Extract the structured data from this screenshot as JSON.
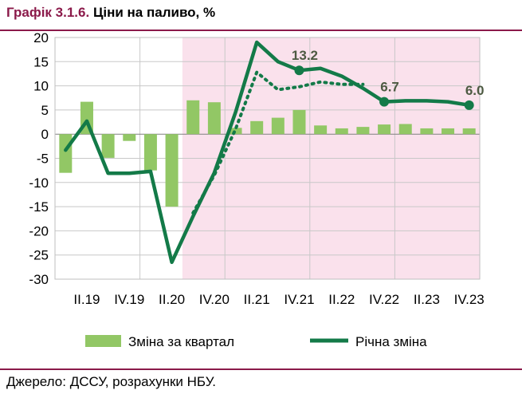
{
  "header": {
    "number": "Графік 3.1.6.",
    "title": "Ціни на паливо, %"
  },
  "footer": {
    "source": "Джерело: ДССУ, розрахунки НБУ."
  },
  "colors": {
    "accent": "#8b1a4a",
    "bar": "#92c765",
    "line": "#137a48",
    "shade": "#fae1ec",
    "annotation": "#4d5a42"
  },
  "chart_data": {
    "type": "bar",
    "quarters": [
      "I.19",
      "II.19",
      "III.19",
      "IV.19",
      "I.20",
      "II.20",
      "III.20",
      "IV.20",
      "I.21",
      "II.21",
      "III.21",
      "IV.21",
      "I.22",
      "II.22",
      "III.22",
      "IV.22",
      "I.23",
      "II.23",
      "III.23",
      "IV.23"
    ],
    "x_tick_labels": [
      "II.19",
      "IV.19",
      "II.20",
      "IV.20",
      "II.21",
      "IV.21",
      "II.22",
      "IV.22",
      "II.23",
      "IV.23"
    ],
    "ylim": [
      -30,
      20
    ],
    "y_ticks": [
      20,
      15,
      10,
      5,
      0,
      -5,
      -10,
      -15,
      -20,
      -25,
      -30
    ],
    "shaded_from": "II.20",
    "series": [
      {
        "name": "Зміна за квартал",
        "type": "bar",
        "values": [
          -8.0,
          6.7,
          -4.9,
          -1.4,
          -7.5,
          -15.0,
          7.0,
          6.6,
          1.3,
          2.7,
          3.4,
          5.0,
          1.8,
          1.2,
          1.5,
          2.0,
          2.1,
          1.2,
          1.2,
          1.2
        ]
      },
      {
        "name": "Річна зміна",
        "type": "line",
        "values": [
          -3.3,
          2.7,
          -8.1,
          -8.1,
          -7.7,
          -26.5,
          -17.0,
          -8.0,
          4.5,
          19.0,
          15.0,
          13.2,
          13.6,
          12.0,
          9.5,
          6.7,
          6.9,
          6.9,
          6.7,
          6.0
        ]
      },
      {
        "type": "line",
        "style": "dotted",
        "x_start": "III.20",
        "values": [
          -16.3,
          -8.5,
          1.0,
          12.8,
          9.2,
          9.8,
          10.8,
          10.3,
          10.3
        ]
      }
    ],
    "annotations": [
      {
        "quarter": "IV.21",
        "value": 13.2,
        "label": "13.2"
      },
      {
        "quarter": "IV.22",
        "value": 6.7,
        "label": "6.7"
      },
      {
        "quarter": "IV.23",
        "value": 6.0,
        "label": "6.0"
      }
    ],
    "legend": [
      "Зміна за квартал",
      "Річна зміна"
    ],
    "legend_position": "bottom"
  }
}
